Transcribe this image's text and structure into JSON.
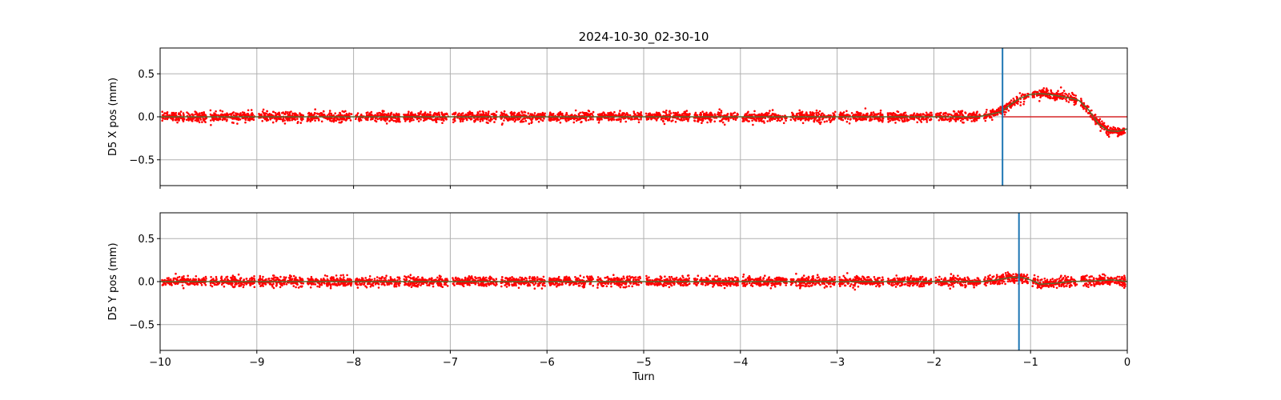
{
  "chart_data": [
    {
      "type": "scatter",
      "title": "2024-10-30_02-30-10",
      "ylabel": "D5 X pos (mm)",
      "xlabel": "",
      "xlim": [
        -10,
        0
      ],
      "ylim": [
        -0.8,
        0.8
      ],
      "xticks": [
        -10,
        -9,
        -8,
        -7,
        -6,
        -5,
        -4,
        -3,
        -2,
        -1,
        0
      ],
      "xtick_labels": [
        "−10",
        "−9",
        "−8",
        "−7",
        "−6",
        "−5",
        "−4",
        "−3",
        "−2",
        "−1",
        "0"
      ],
      "show_xtick_labels": false,
      "yticks": [
        -0.5,
        0.0,
        0.5
      ],
      "ytick_labels": [
        "−0.5",
        "0.0",
        "0.5"
      ],
      "grid": true,
      "marker_line_x": -1.29,
      "noise_amplitude": 0.05,
      "segment_gap_turns": 0.04,
      "series": [
        {
          "kind": "scatter",
          "color": "#ff0000",
          "envelope": {
            "x": [
              -10,
              -1.55,
              -1.45,
              -1.3,
              -1.2,
              -1.1,
              -1.0,
              -0.9,
              -0.8,
              -0.7,
              -0.6,
              -0.5,
              -0.4,
              -0.3,
              -0.2,
              -0.1,
              0.0
            ],
            "y": [
              0.0,
              0.0,
              0.02,
              0.06,
              0.15,
              0.22,
              0.26,
              0.27,
              0.26,
              0.24,
              0.22,
              0.19,
              0.08,
              -0.08,
              -0.16,
              -0.17,
              -0.14
            ]
          }
        },
        {
          "kind": "line",
          "color": "#556b2f",
          "x": [
            -10,
            -1.55,
            -1.45,
            -1.3,
            -1.2,
            -1.1,
            -1.0,
            -0.9,
            -0.8,
            -0.7,
            -0.6,
            -0.5,
            -0.4,
            -0.3,
            -0.2,
            -0.1,
            0.0
          ],
          "y": [
            0.0,
            0.0,
            0.02,
            0.06,
            0.15,
            0.22,
            0.26,
            0.27,
            0.26,
            0.24,
            0.22,
            0.19,
            0.08,
            -0.08,
            -0.16,
            -0.17,
            -0.14
          ]
        },
        {
          "kind": "line",
          "color": "#d62728",
          "x": [
            -1.3,
            0.0
          ],
          "y": [
            0.0,
            0.0
          ]
        }
      ]
    },
    {
      "type": "scatter",
      "title": "",
      "ylabel": "D5 Y pos (mm)",
      "xlabel": "Turn",
      "xlim": [
        -10,
        0
      ],
      "ylim": [
        -0.8,
        0.8
      ],
      "xticks": [
        -10,
        -9,
        -8,
        -7,
        -6,
        -5,
        -4,
        -3,
        -2,
        -1,
        0
      ],
      "xtick_labels": [
        "−10",
        "−9",
        "−8",
        "−7",
        "−6",
        "−5",
        "−4",
        "−3",
        "−2",
        "−1",
        "0"
      ],
      "show_xtick_labels": true,
      "yticks": [
        -0.5,
        0.0,
        0.5
      ],
      "ytick_labels": [
        "−0.5",
        "0.0",
        "0.5"
      ],
      "grid": true,
      "marker_line_x": -1.12,
      "noise_amplitude": 0.05,
      "segment_gap_turns": 0.04,
      "series": [
        {
          "kind": "scatter",
          "color": "#ff0000",
          "envelope": {
            "x": [
              -10,
              -1.5,
              -1.35,
              -1.2,
              -1.1,
              -1.0,
              -0.9,
              -0.75,
              -0.6,
              -0.3,
              -0.15,
              0.0
            ],
            "y": [
              0.0,
              0.0,
              0.02,
              0.05,
              0.05,
              0.02,
              -0.03,
              -0.02,
              0.0,
              0.01,
              0.02,
              0.0
            ]
          }
        },
        {
          "kind": "line",
          "color": "#556b2f",
          "x": [
            -10,
            -1.5,
            -1.35,
            -1.2,
            -1.1,
            -1.0,
            -0.9,
            -0.75,
            -0.6,
            -0.3,
            -0.15,
            0.0
          ],
          "y": [
            0.0,
            0.0,
            0.02,
            0.05,
            0.05,
            0.02,
            -0.03,
            -0.02,
            0.0,
            0.01,
            0.02,
            0.0
          ]
        }
      ]
    }
  ],
  "colors": {
    "marker_line": "#1f77b4",
    "grid": "#b0b0b0",
    "axes": "#000000"
  }
}
